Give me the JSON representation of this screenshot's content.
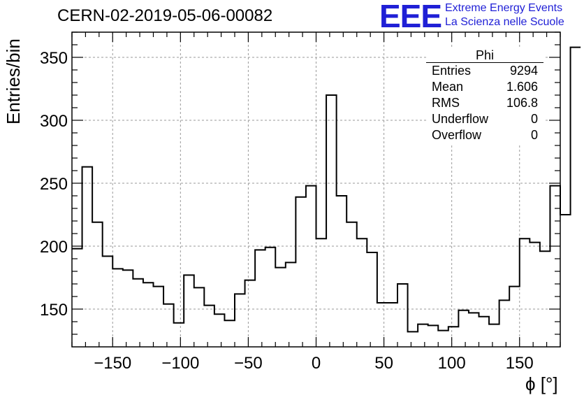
{
  "header": {
    "title": "CERN-02-2019-05-06-00082",
    "logo_text": "EEE",
    "org_line1": "Extreme Energy Events",
    "org_line2": "La Scienza nelle Scuole"
  },
  "stats_box": {
    "title": "Phi",
    "rows": [
      {
        "label": "Entries",
        "value": "9294"
      },
      {
        "label": "Mean",
        "value": "1.606"
      },
      {
        "label": "RMS",
        "value": "106.8"
      },
      {
        "label": "Underflow",
        "value": "0"
      },
      {
        "label": "Overflow",
        "value": "0"
      }
    ]
  },
  "colors": {
    "accent": "#1f1fd6",
    "line": "#000000",
    "grid": "#9a9a9a"
  },
  "chart_data": {
    "type": "bar",
    "style": "step-histogram",
    "xlabel": "ϕ [°]",
    "ylabel": "Entries/bin",
    "xlim": [
      -180,
      180
    ],
    "ylim": [
      120,
      370
    ],
    "grid": true,
    "x_ticks": [
      -150,
      -100,
      -50,
      0,
      50,
      100,
      150
    ],
    "y_ticks": [
      150,
      200,
      250,
      300,
      350
    ],
    "bin_width": 7.5,
    "bin_edges_start": -180,
    "values": [
      198,
      263,
      219,
      192,
      182,
      181,
      174,
      171,
      168,
      154,
      139,
      177,
      167,
      153,
      146,
      141,
      162,
      173,
      197,
      199,
      183,
      187,
      239,
      248,
      206,
      320,
      240,
      219,
      206,
      195,
      155,
      155,
      170,
      132,
      138,
      137,
      133,
      136,
      149,
      147,
      144,
      138,
      157,
      168,
      206,
      203,
      196,
      248,
      225,
      358
    ]
  }
}
